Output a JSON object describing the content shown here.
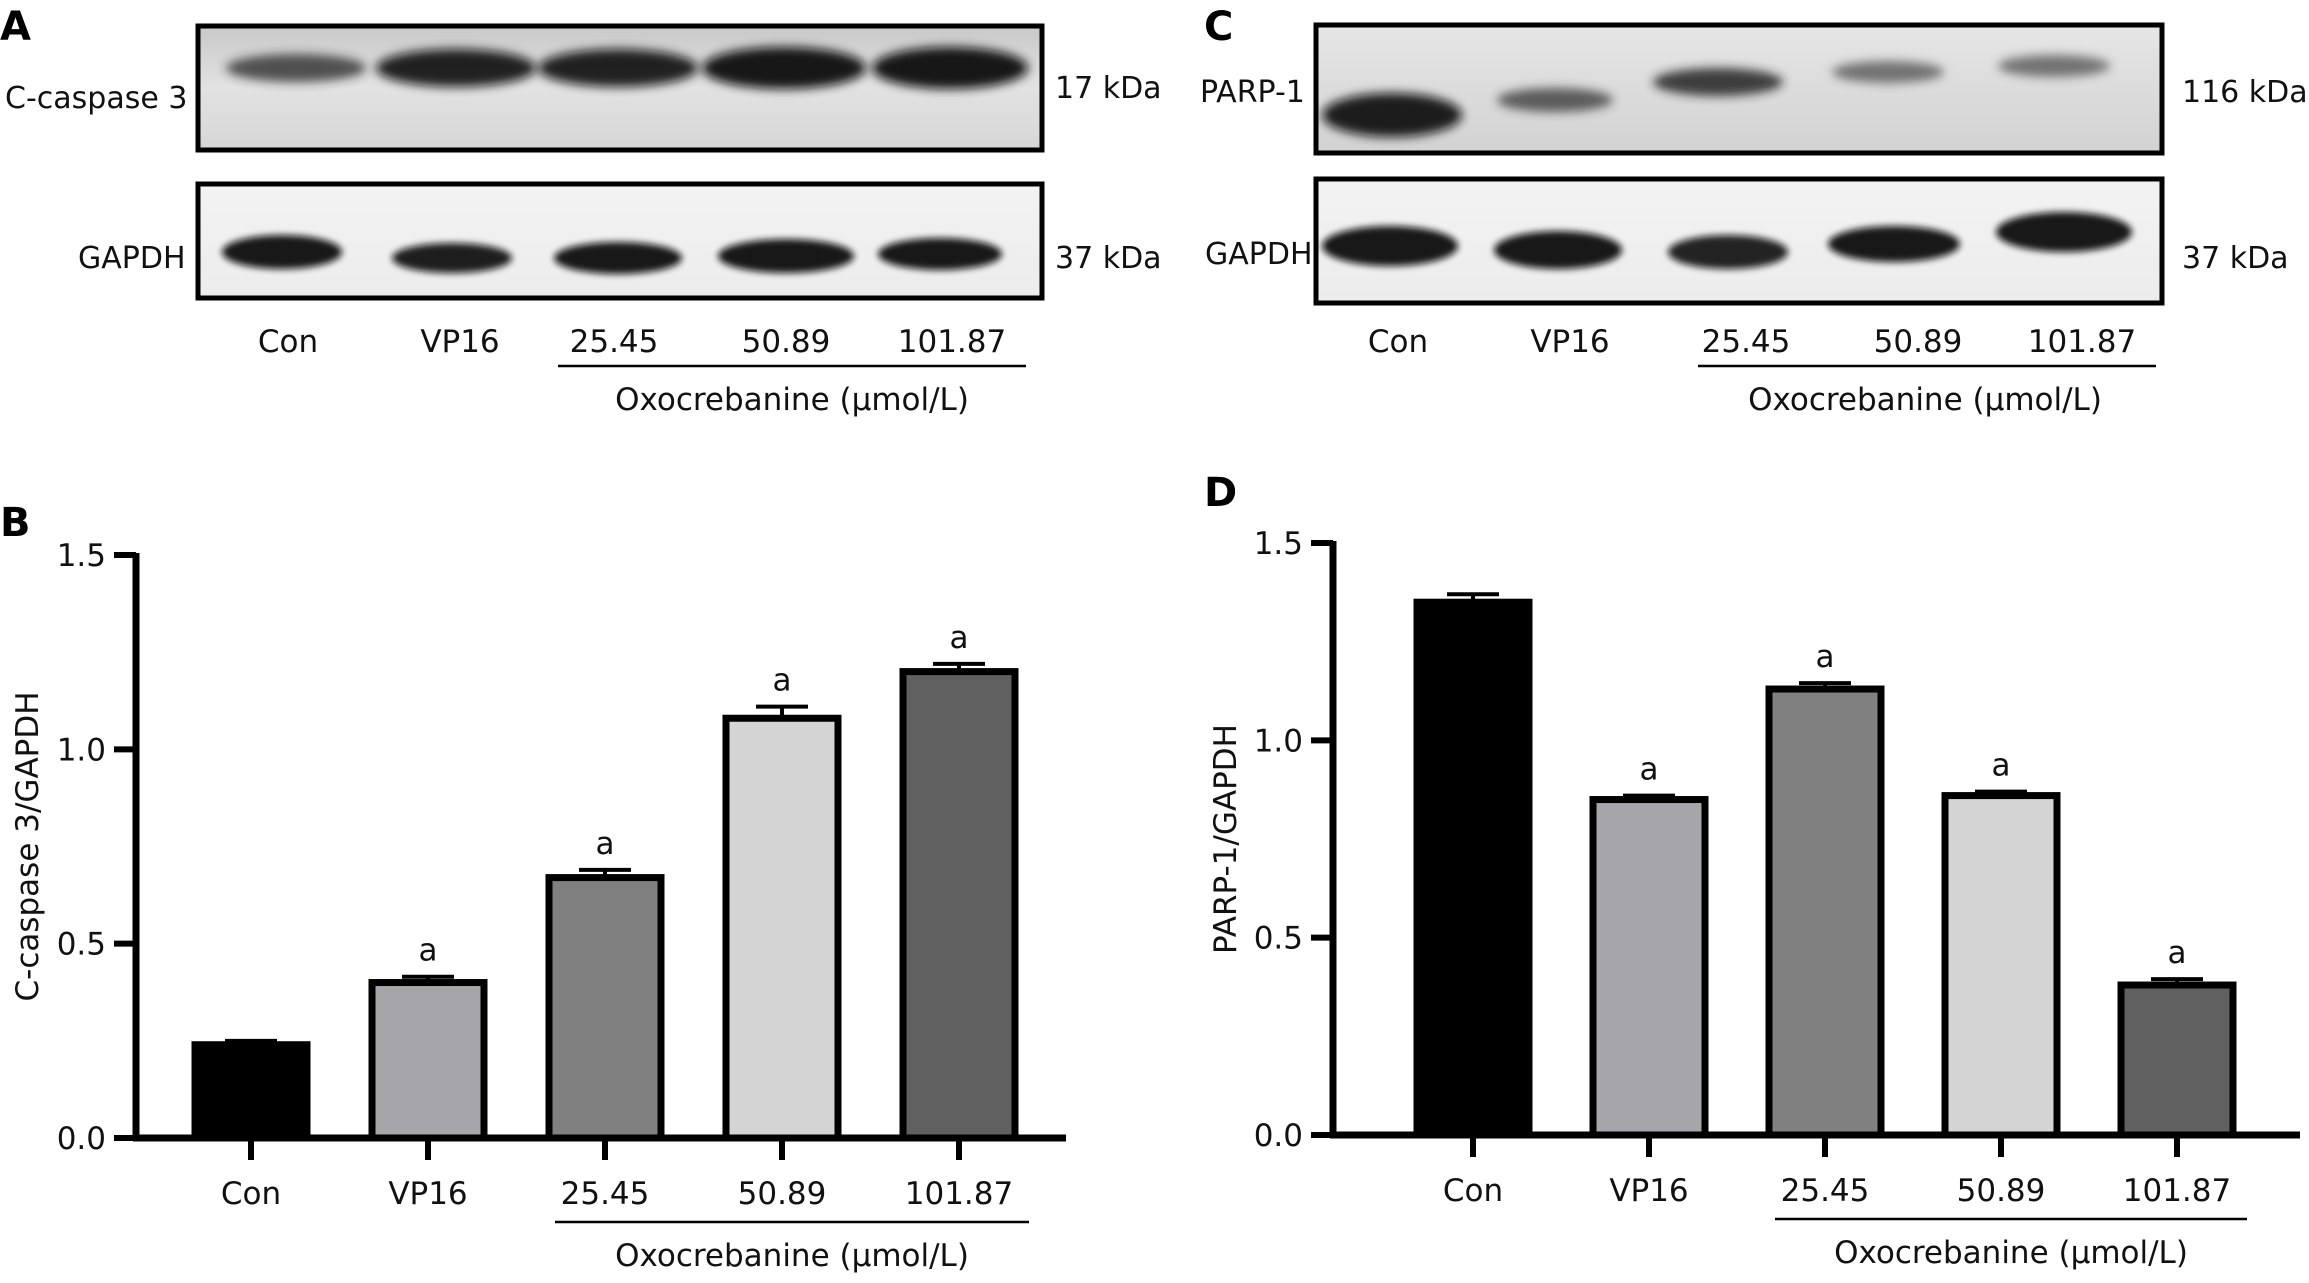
{
  "panels": {
    "A": {
      "letter": "A",
      "blot1_label": "C-caspase 3",
      "blot1_kda": "17 kDa",
      "blot2_label": "GAPDH",
      "blot2_kda": "37 kDa",
      "lanes": [
        "Con",
        "VP16",
        "25.45",
        "50.89",
        "101.87"
      ],
      "group_label": "Oxocrebanine (μmol/L)"
    },
    "C": {
      "letter": "C",
      "blot1_label": "PARP-1",
      "blot1_kda": "116 kDa",
      "blot2_label": "GAPDH",
      "blot2_kda": "37 kDa",
      "lanes": [
        "Con",
        "VP16",
        "25.45",
        "50.89",
        "101.87"
      ],
      "group_label": "Oxocrebanine (μmol/L)"
    },
    "B": {
      "letter": "B"
    },
    "D": {
      "letter": "D"
    }
  },
  "chart_data": [
    {
      "panel": "B",
      "type": "bar",
      "categories": [
        "Con",
        "VP16",
        "25.45",
        "50.89",
        "101.87"
      ],
      "values": [
        0.24,
        0.4,
        0.67,
        1.08,
        1.2
      ],
      "errors": [
        0.01,
        0.015,
        0.02,
        0.03,
        0.02
      ],
      "significance": [
        "",
        "a",
        "a",
        "a",
        "a"
      ],
      "colors": [
        "#000000",
        "#a6a6aa",
        "#808080",
        "#d4d4d4",
        "#606060"
      ],
      "ylabel": "C-caspase 3/GAPDH",
      "yticks": [
        "0.0",
        "0.5",
        "1.0",
        "1.5"
      ],
      "ylim": [
        0,
        1.5
      ],
      "group_label": "Oxocrebanine (μmol/L)"
    },
    {
      "panel": "D",
      "type": "bar",
      "categories": [
        "Con",
        "VP16",
        "25.45",
        "50.89",
        "101.87"
      ],
      "values": [
        1.35,
        0.85,
        1.13,
        0.86,
        0.38
      ],
      "errors": [
        0.02,
        0.01,
        0.015,
        0.01,
        0.015
      ],
      "significance": [
        "",
        "a",
        "a",
        "a",
        "a"
      ],
      "colors": [
        "#000000",
        "#a6a6aa",
        "#808080",
        "#d4d4d4",
        "#606060"
      ],
      "ylabel": "PARP-1/GAPDH",
      "yticks": [
        "0.0",
        "0.5",
        "1.0",
        "1.5"
      ],
      "ylim": [
        0,
        1.5
      ],
      "group_label": "Oxocrebanine (μmol/L)"
    }
  ]
}
